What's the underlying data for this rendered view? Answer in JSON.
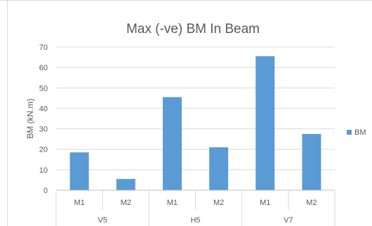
{
  "chart_data": {
    "type": "bar",
    "title": "Max (-ve) BM In Beam",
    "ylabel": "BM (kN.m)",
    "xlabel": "",
    "ylim": [
      0,
      70
    ],
    "yticks": [
      0,
      10,
      20,
      30,
      40,
      50,
      60,
      70
    ],
    "groups": [
      "V5",
      "H5",
      "V7"
    ],
    "categories": [
      "M1",
      "M2",
      "M1",
      "M2",
      "M1",
      "M2"
    ],
    "series": [
      {
        "name": "BM",
        "values": [
          18.5,
          5.5,
          45.5,
          21,
          65.5,
          27.5
        ],
        "color": "#5B9BD5"
      }
    ],
    "grid": true,
    "legend_position": "right"
  }
}
